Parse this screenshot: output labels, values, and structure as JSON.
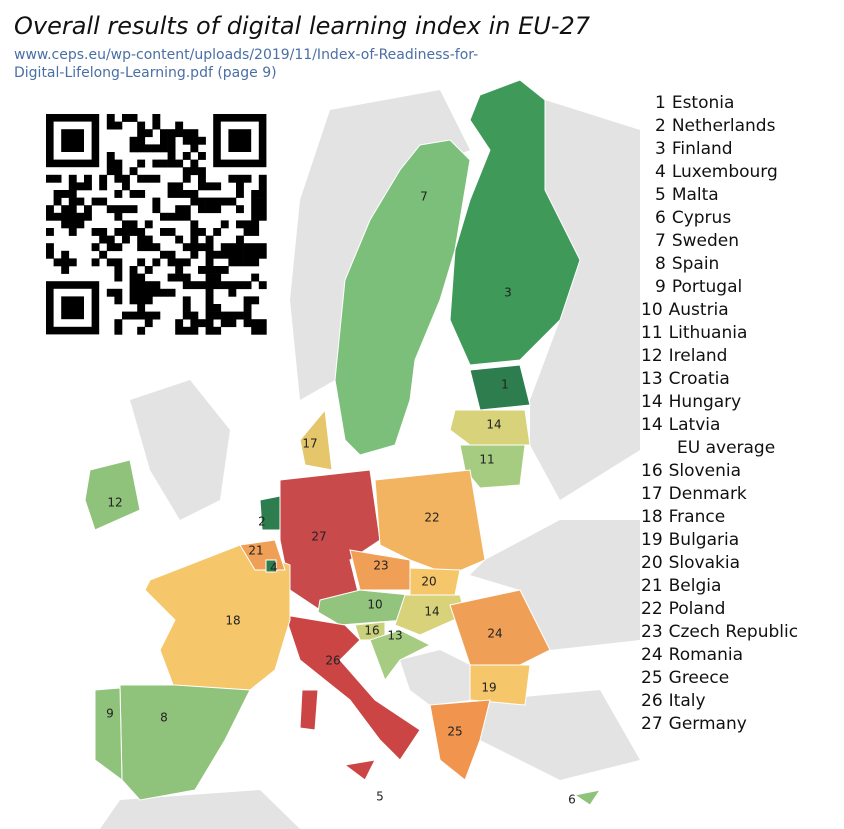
{
  "title": "Overall results of digital learning index in EU-27",
  "source": [
    "www.ceps.eu/wp-content/uploads/2019/11/Index-of-Readiness-for-",
    "Digital-Lifelong-Learning.pdf (page 9)"
  ],
  "ranking": [
    {
      "rank": 1,
      "country": "Estonia"
    },
    {
      "rank": 2,
      "country": "Netherlands"
    },
    {
      "rank": 3,
      "country": "Finland"
    },
    {
      "rank": 4,
      "country": "Luxembourg"
    },
    {
      "rank": 5,
      "country": "Malta"
    },
    {
      "rank": 6,
      "country": "Cyprus"
    },
    {
      "rank": 7,
      "country": "Sweden"
    },
    {
      "rank": 8,
      "country": "Spain"
    },
    {
      "rank": 9,
      "country": "Portugal"
    },
    {
      "rank": 10,
      "country": "Austria"
    },
    {
      "rank": 11,
      "country": "Lithuania"
    },
    {
      "rank": 12,
      "country": "Ireland"
    },
    {
      "rank": 13,
      "country": "Croatia"
    },
    {
      "rank": 14,
      "country": "Hungary"
    },
    {
      "rank": 14,
      "country": "Latvia"
    },
    {
      "country": "EU average"
    },
    {
      "rank": 16,
      "country": "Slovenia"
    },
    {
      "rank": 17,
      "country": "Denmark"
    },
    {
      "rank": 18,
      "country": "France"
    },
    {
      "rank": 19,
      "country": "Bulgaria"
    },
    {
      "rank": 20,
      "country": "Slovakia"
    },
    {
      "rank": 21,
      "country": "Belgia"
    },
    {
      "rank": 22,
      "country": "Poland"
    },
    {
      "rank": 23,
      "country": "Czech Republic"
    },
    {
      "rank": 24,
      "country": "Romania"
    },
    {
      "rank": 25,
      "country": "Greece"
    },
    {
      "rank": 26,
      "country": "Italy"
    },
    {
      "rank": 27,
      "country": "Germany"
    }
  ],
  "map_labels": [
    7,
    3,
    1,
    14,
    11,
    17,
    12,
    2,
    27,
    22,
    21,
    4,
    23,
    20,
    10,
    14,
    16,
    13,
    24,
    18,
    26,
    19,
    9,
    8,
    25,
    5,
    6
  ]
}
